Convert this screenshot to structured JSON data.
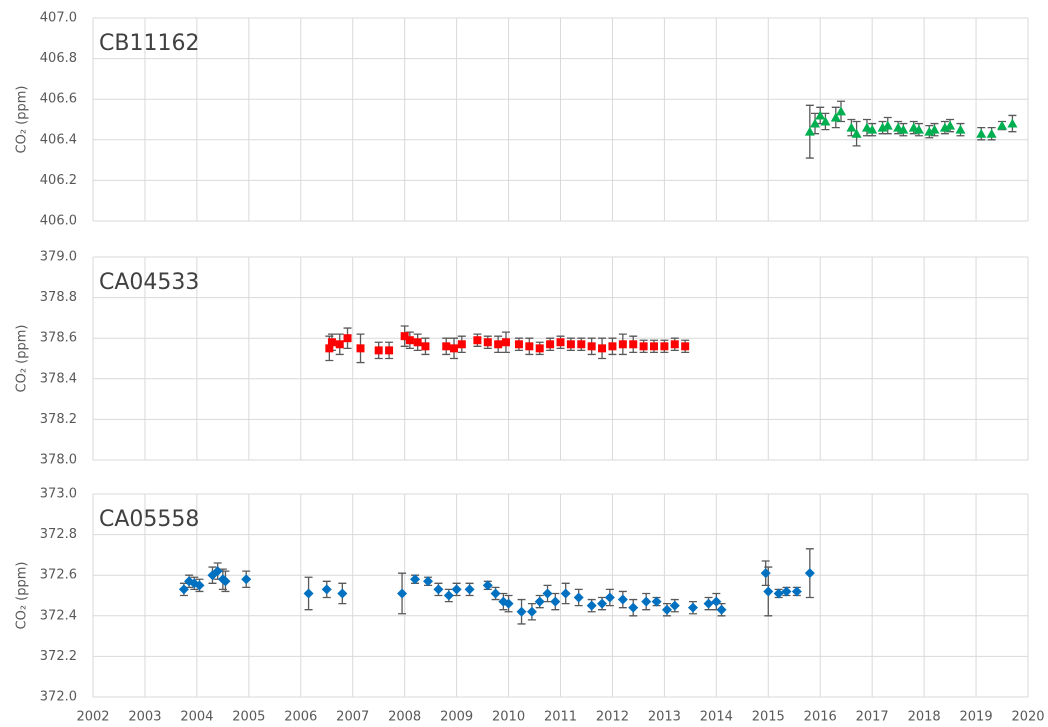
{
  "chart_data": [
    {
      "type": "scatter",
      "title": "CB11162",
      "ylabel": "CO₂ (ppm)",
      "x": [
        2015.8,
        2015.9,
        2016.0,
        2016.1,
        2016.3,
        2016.4,
        2016.6,
        2016.7,
        2016.9,
        2017.0,
        2017.2,
        2017.3,
        2017.5,
        2017.6,
        2017.8,
        2017.9,
        2018.1,
        2018.2,
        2018.4,
        2018.5,
        2018.7,
        2019.1,
        2019.3,
        2019.5,
        2019.7
      ],
      "series": [
        {
          "color": "#00b050",
          "marker": "triangle",
          "error_color": "#595959",
          "values": [
            406.44,
            406.48,
            406.52,
            406.49,
            406.51,
            406.54,
            406.46,
            406.43,
            406.46,
            406.45,
            406.46,
            406.47,
            406.46,
            406.45,
            406.46,
            406.45,
            406.44,
            406.45,
            406.46,
            406.47,
            406.45,
            406.43,
            406.43,
            406.47,
            406.48
          ],
          "errors": [
            0.13,
            0.05,
            0.04,
            0.04,
            0.05,
            0.05,
            0.04,
            0.06,
            0.04,
            0.03,
            0.03,
            0.04,
            0.03,
            0.03,
            0.03,
            0.03,
            0.03,
            0.03,
            0.03,
            0.03,
            0.03,
            0.03,
            0.03,
            0.02,
            0.04
          ]
        }
      ],
      "xlim": [
        2002,
        2020
      ],
      "xticks": [
        2002,
        2003,
        2004,
        2005,
        2006,
        2007,
        2008,
        2009,
        2010,
        2011,
        2012,
        2013,
        2014,
        2015,
        2016,
        2017,
        2018,
        2019,
        2020
      ],
      "ylim": [
        406.0,
        407.0
      ],
      "yticks": [
        {
          "value": 406.0,
          "label": "406.0"
        },
        {
          "value": 406.2,
          "label": "406.2"
        },
        {
          "value": 406.4,
          "label": "406.4"
        },
        {
          "value": 406.6,
          "label": "406.6"
        },
        {
          "value": 406.8,
          "label": "406.8"
        },
        {
          "value": 407.0,
          "label": "407.0"
        }
      ],
      "grid": true
    },
    {
      "type": "scatter",
      "title": "CA04533",
      "ylabel": "CO₂ (ppm)",
      "x": [
        2006.55,
        2006.6,
        2006.75,
        2006.9,
        2007.15,
        2007.5,
        2007.7,
        2008.0,
        2008.1,
        2008.25,
        2008.4,
        2008.8,
        2008.95,
        2009.1,
        2009.4,
        2009.6,
        2009.8,
        2009.95,
        2010.2,
        2010.4,
        2010.6,
        2010.8,
        2011.0,
        2011.2,
        2011.4,
        2011.6,
        2011.8,
        2012.0,
        2012.2,
        2012.4,
        2012.6,
        2012.8,
        2013.0,
        2013.2,
        2013.4
      ],
      "series": [
        {
          "color": "#ff0000",
          "marker": "square",
          "error_color": "#595959",
          "values": [
            378.55,
            378.58,
            378.57,
            378.6,
            378.55,
            378.54,
            378.54,
            378.61,
            378.59,
            378.58,
            378.56,
            378.56,
            378.55,
            378.57,
            378.59,
            378.58,
            378.57,
            378.58,
            378.57,
            378.56,
            378.55,
            378.57,
            378.58,
            378.57,
            378.57,
            378.56,
            378.55,
            378.56,
            378.57,
            378.57,
            378.56,
            378.56,
            378.56,
            378.57,
            378.56
          ],
          "errors": [
            0.06,
            0.04,
            0.05,
            0.05,
            0.07,
            0.04,
            0.04,
            0.05,
            0.04,
            0.04,
            0.04,
            0.04,
            0.05,
            0.04,
            0.03,
            0.03,
            0.04,
            0.05,
            0.03,
            0.04,
            0.03,
            0.03,
            0.03,
            0.03,
            0.03,
            0.04,
            0.05,
            0.04,
            0.05,
            0.04,
            0.03,
            0.03,
            0.03,
            0.03,
            0.03
          ]
        }
      ],
      "xlim": [
        2002,
        2020
      ],
      "xticks": [
        2002,
        2003,
        2004,
        2005,
        2006,
        2007,
        2008,
        2009,
        2010,
        2011,
        2012,
        2013,
        2014,
        2015,
        2016,
        2017,
        2018,
        2019,
        2020
      ],
      "ylim": [
        378.0,
        379.0
      ],
      "yticks": [
        {
          "value": 378.0,
          "label": "378.0"
        },
        {
          "value": 378.2,
          "label": "378.2"
        },
        {
          "value": 378.4,
          "label": "378.4"
        },
        {
          "value": 378.6,
          "label": "378.6"
        },
        {
          "value": 378.8,
          "label": "378.8"
        },
        {
          "value": 379.0,
          "label": "379.0"
        }
      ],
      "grid": true
    },
    {
      "type": "scatter",
      "title": "CA05558",
      "ylabel": "CO₂ (ppm)",
      "x": [
        2003.75,
        2003.85,
        2003.95,
        2004.05,
        2004.3,
        2004.4,
        2004.5,
        2004.55,
        2004.95,
        2006.15,
        2006.5,
        2006.8,
        2007.95,
        2008.2,
        2008.45,
        2008.65,
        2008.85,
        2009.0,
        2009.25,
        2009.6,
        2009.75,
        2009.9,
        2010.0,
        2010.25,
        2010.45,
        2010.6,
        2010.75,
        2010.9,
        2011.1,
        2011.35,
        2011.6,
        2011.8,
        2011.95,
        2012.2,
        2012.4,
        2012.65,
        2012.85,
        2013.05,
        2013.2,
        2013.55,
        2013.85,
        2014.0,
        2014.1,
        2014.95,
        2015.0,
        2015.2,
        2015.35,
        2015.55,
        2015.8
      ],
      "series": [
        {
          "color": "#0070c0",
          "marker": "diamond",
          "error_color": "#595959",
          "values": [
            372.53,
            372.57,
            372.56,
            372.55,
            372.6,
            372.62,
            372.58,
            372.57,
            372.58,
            372.51,
            372.53,
            372.51,
            372.51,
            372.58,
            372.57,
            372.53,
            372.5,
            372.53,
            372.53,
            372.55,
            372.51,
            372.47,
            372.46,
            372.42,
            372.42,
            372.47,
            372.51,
            372.47,
            372.51,
            372.49,
            372.45,
            372.46,
            372.49,
            372.48,
            372.44,
            372.47,
            372.47,
            372.43,
            372.45,
            372.44,
            372.46,
            372.47,
            372.43,
            372.61,
            372.52,
            372.51,
            372.52,
            372.52,
            372.61
          ],
          "errors": [
            0.03,
            0.03,
            0.03,
            0.03,
            0.04,
            0.04,
            0.05,
            0.05,
            0.04,
            0.08,
            0.04,
            0.05,
            0.1,
            0.02,
            0.02,
            0.03,
            0.03,
            0.03,
            0.03,
            0.02,
            0.03,
            0.04,
            0.04,
            0.06,
            0.04,
            0.03,
            0.04,
            0.04,
            0.05,
            0.04,
            0.03,
            0.03,
            0.04,
            0.04,
            0.04,
            0.04,
            0.02,
            0.03,
            0.03,
            0.03,
            0.03,
            0.04,
            0.03,
            0.06,
            0.12,
            0.02,
            0.02,
            0.02,
            0.12
          ]
        }
      ],
      "xlim": [
        2002,
        2020
      ],
      "xticks": [
        2002,
        2003,
        2004,
        2005,
        2006,
        2007,
        2008,
        2009,
        2010,
        2011,
        2012,
        2013,
        2014,
        2015,
        2016,
        2017,
        2018,
        2019,
        2020
      ],
      "ylim": [
        372.0,
        373.0
      ],
      "yticks": [
        {
          "value": 372.0,
          "label": "372.0"
        },
        {
          "value": 372.2,
          "label": "372.2"
        },
        {
          "value": 372.4,
          "label": "372.4"
        },
        {
          "value": 372.6,
          "label": "372.6"
        },
        {
          "value": 372.8,
          "label": "372.8"
        },
        {
          "value": 373.0,
          "label": "373.0"
        }
      ],
      "grid": true
    }
  ]
}
